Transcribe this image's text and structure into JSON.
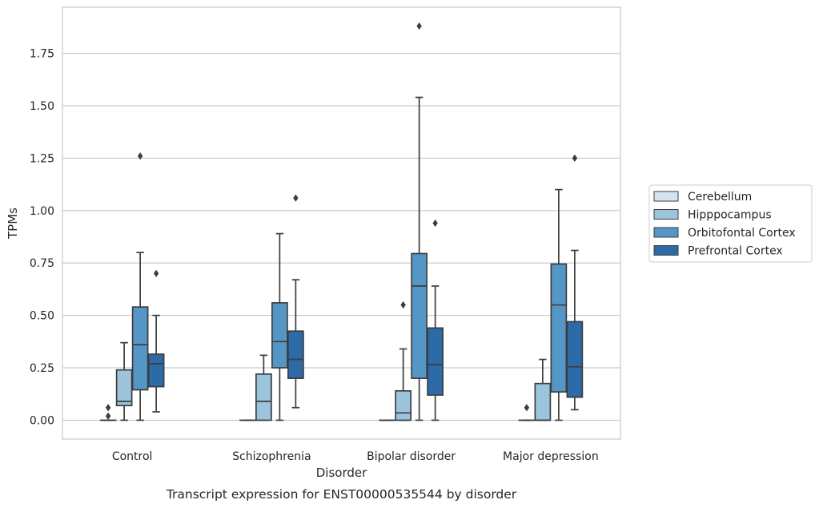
{
  "chart_data": {
    "type": "box",
    "caption": "Transcript expression for ENST00000535544 by disorder",
    "xlabel": "Disorder",
    "ylabel": "TPMs",
    "ylim": [
      -0.09,
      1.97
    ],
    "yticks": [
      "0.00",
      "0.25",
      "0.50",
      "0.75",
      "1.00",
      "1.25",
      "1.50",
      "1.75"
    ],
    "grid": "horizontal",
    "legend_position": "right",
    "categories": [
      "Control",
      "Schizophrenia",
      "Bipolar disorder",
      "Major depression"
    ],
    "series": [
      {
        "name": "Cerebellum",
        "color": "#d6e4f0",
        "boxes": [
          {
            "min": 0,
            "q1": 0,
            "median": 0,
            "q3": 0,
            "max": 0,
            "outliers": [
              0.02,
              0.06
            ]
          },
          {
            "min": 0,
            "q1": 0,
            "median": 0,
            "q3": 0,
            "max": 0,
            "outliers": []
          },
          {
            "min": 0,
            "q1": 0,
            "median": 0,
            "q3": 0,
            "max": 0,
            "outliers": []
          },
          {
            "min": 0,
            "q1": 0,
            "median": 0,
            "q3": 0,
            "max": 0,
            "outliers": [
              0.06
            ]
          }
        ]
      },
      {
        "name": "Hipppocampus",
        "color": "#9cc4dd",
        "boxes": [
          {
            "min": 0,
            "q1": 0.07,
            "median": 0.09,
            "q3": 0.24,
            "max": 0.37,
            "outliers": []
          },
          {
            "min": 0,
            "q1": 0,
            "median": 0.09,
            "q3": 0.22,
            "max": 0.31,
            "outliers": []
          },
          {
            "min": 0,
            "q1": 0,
            "median": 0.035,
            "q3": 0.14,
            "max": 0.34,
            "outliers": [
              0.55
            ]
          },
          {
            "min": 0,
            "q1": 0,
            "median": 0,
            "q3": 0.175,
            "max": 0.29,
            "outliers": []
          }
        ]
      },
      {
        "name": "Orbitofontal Cortex",
        "color": "#5497c6",
        "boxes": [
          {
            "min": 0,
            "q1": 0.145,
            "median": 0.36,
            "q3": 0.54,
            "max": 0.8,
            "outliers": [
              1.26
            ]
          },
          {
            "min": 0,
            "q1": 0.25,
            "median": 0.375,
            "q3": 0.56,
            "max": 0.89,
            "outliers": []
          },
          {
            "min": 0,
            "q1": 0.2,
            "median": 0.64,
            "q3": 0.795,
            "max": 1.54,
            "outliers": [
              1.88
            ]
          },
          {
            "min": 0,
            "q1": 0.135,
            "median": 0.55,
            "q3": 0.745,
            "max": 1.1,
            "outliers": []
          }
        ]
      },
      {
        "name": "Prefrontal Cortex",
        "color": "#2d6aa8",
        "boxes": [
          {
            "min": 0.04,
            "q1": 0.16,
            "median": 0.27,
            "q3": 0.315,
            "max": 0.5,
            "outliers": [
              0.7
            ]
          },
          {
            "min": 0.06,
            "q1": 0.2,
            "median": 0.29,
            "q3": 0.425,
            "max": 0.67,
            "outliers": [
              1.06
            ]
          },
          {
            "min": 0,
            "q1": 0.12,
            "median": 0.265,
            "q3": 0.44,
            "max": 0.64,
            "outliers": [
              0.94
            ]
          },
          {
            "min": 0.05,
            "q1": 0.11,
            "median": 0.255,
            "q3": 0.47,
            "max": 0.81,
            "outliers": [
              1.25
            ]
          }
        ]
      }
    ]
  }
}
